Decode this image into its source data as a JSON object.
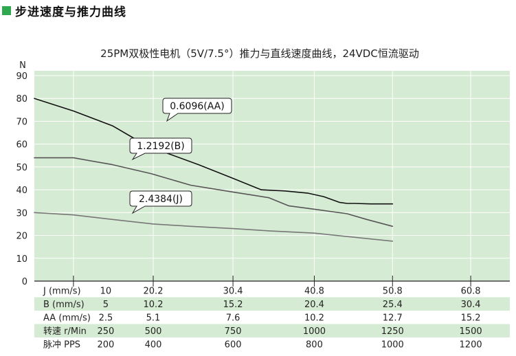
{
  "heading": "步进速度与推力曲线",
  "chart_data": {
    "type": "line",
    "title": "25PM双极性电机（5V/7.5°）推力与直线速度曲线，24VDC恒流驱动",
    "ylabel": "N",
    "ylim": [
      0,
      90
    ],
    "yticks": [
      0,
      10,
      20,
      30,
      40,
      50,
      60,
      70,
      80,
      90
    ],
    "xlim": [
      5,
      65.8
    ],
    "x_axis_row": "J (mm/s)",
    "series": [
      {
        "name": "0.6096(AA)",
        "color": "#111111",
        "x": [
          5,
          10,
          15,
          18,
          20,
          22,
          26,
          30.4,
          34,
          37,
          40,
          42,
          44,
          45,
          46,
          48,
          50.8
        ],
        "y": [
          80,
          74.5,
          68,
          62,
          58.5,
          56,
          51,
          45,
          40,
          39.5,
          38.5,
          37,
          34.5,
          34,
          34,
          33.8,
          33.8
        ]
      },
      {
        "name": "1.2192(B)",
        "color": "#555555",
        "x": [
          5,
          10,
          15,
          20,
          25,
          30.4,
          35,
          37.5,
          40.8,
          45,
          47.5,
          50.8
        ],
        "y": [
          54,
          54,
          51,
          47,
          42,
          39,
          36.5,
          33,
          31.5,
          29.5,
          27,
          24
        ]
      },
      {
        "name": "2.4384(J)",
        "color": "#777777",
        "x": [
          5,
          10,
          15,
          20.2,
          25,
          30.4,
          35,
          40.8,
          45,
          50.8
        ],
        "y": [
          30,
          29,
          27,
          25,
          24,
          23,
          22,
          21,
          19.5,
          17.5
        ]
      }
    ],
    "callouts": [
      "0.6096(AA)",
      "1.2192(B)",
      "2.4384(J)"
    ],
    "table": {
      "rows": [
        {
          "label": "J (mm/s)",
          "values": [
            "10",
            "20.2",
            "30.4",
            "40.8",
            "50.8",
            "60.8"
          ],
          "shade": false
        },
        {
          "label": "B (mm/s)",
          "values": [
            "5",
            "10.2",
            "15.2",
            "20.4",
            "25.4",
            "30.4"
          ],
          "shade": true
        },
        {
          "label": "AA (mm/s)",
          "values": [
            "2.5",
            "5.1",
            "7.6",
            "10.2",
            "12.7",
            "15.2"
          ],
          "shade": false
        },
        {
          "label": "转速 r/Min",
          "values": [
            "250",
            "500",
            "750",
            "1000",
            "1250",
            "1500"
          ],
          "shade": true
        },
        {
          "label": "脉冲 PPS",
          "values": [
            "200",
            "400",
            "600",
            "800",
            "1000",
            "1200"
          ],
          "shade": false
        }
      ]
    },
    "colors": {
      "plot_bg": "#d6ebd3",
      "row_shade": "#d6ebd3",
      "grid": "#ffffff",
      "accent": "#2fa84f"
    },
    "grid": true
  }
}
